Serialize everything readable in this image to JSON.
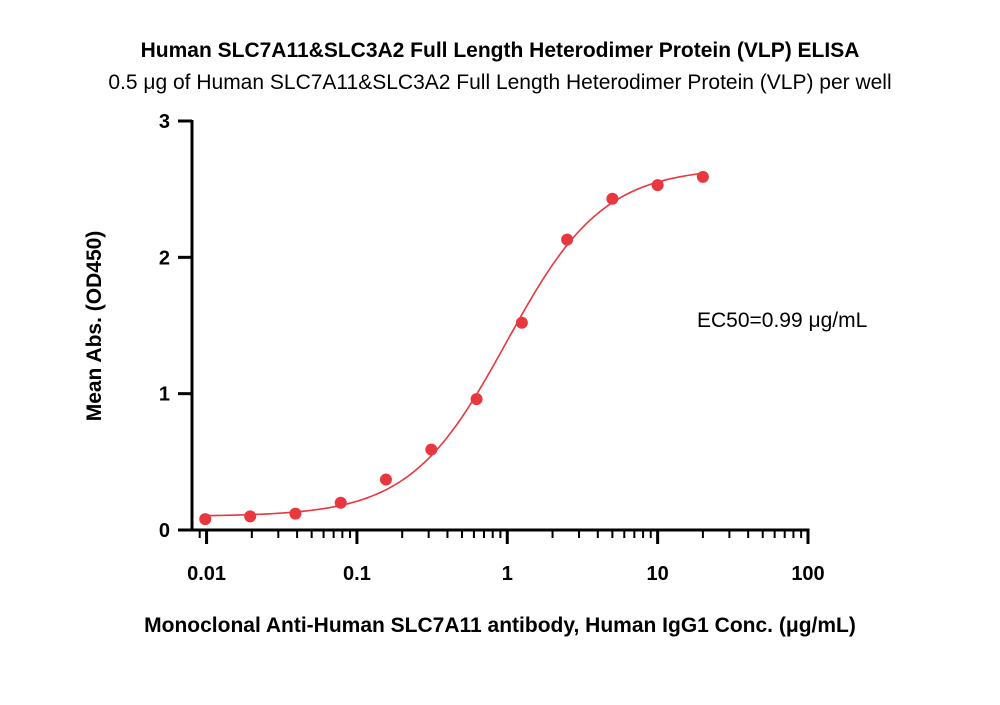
{
  "chart_data": {
    "type": "scatter",
    "title": "Human SLC7A11&SLC3A2 Full Length Heterodimer Protein (VLP) ELISA",
    "subtitle": "0.5 μg of Human SLC7A11&SLC3A2 Full Length Heterodimer Protein (VLP) per well",
    "xlabel": "Monoclonal Anti-Human SLC7A11 antibody, Human IgG1 Conc. (μg/mL)",
    "ylabel": "Mean Abs. (OD450)",
    "x_scale": "log",
    "xlim": [
      0.008,
      100
    ],
    "ylim": [
      0,
      3
    ],
    "x_ticks": [
      0.01,
      0.1,
      1,
      10,
      100
    ],
    "x_tick_labels": [
      "0.01",
      "0.1",
      "1",
      "10",
      "100"
    ],
    "y_ticks": [
      0,
      1,
      2,
      3
    ],
    "y_tick_labels": [
      "0",
      "1",
      "2",
      "3"
    ],
    "grid": false,
    "annotation": "EC50=0.99 μg/mL",
    "point_color": "#e8373f",
    "curve_color": "#e8373f",
    "points": {
      "x": [
        0.0098,
        0.0195,
        0.039,
        0.078,
        0.156,
        0.3125,
        0.625,
        1.25,
        2.5,
        5,
        10,
        20
      ],
      "y": [
        0.08,
        0.1,
        0.12,
        0.2,
        0.37,
        0.59,
        0.96,
        1.52,
        2.13,
        2.43,
        2.53,
        2.59
      ]
    },
    "fit": {
      "model": "4PL",
      "bottom": 0.1,
      "top": 2.66,
      "ec50": 0.99,
      "hill": 1.35
    }
  }
}
